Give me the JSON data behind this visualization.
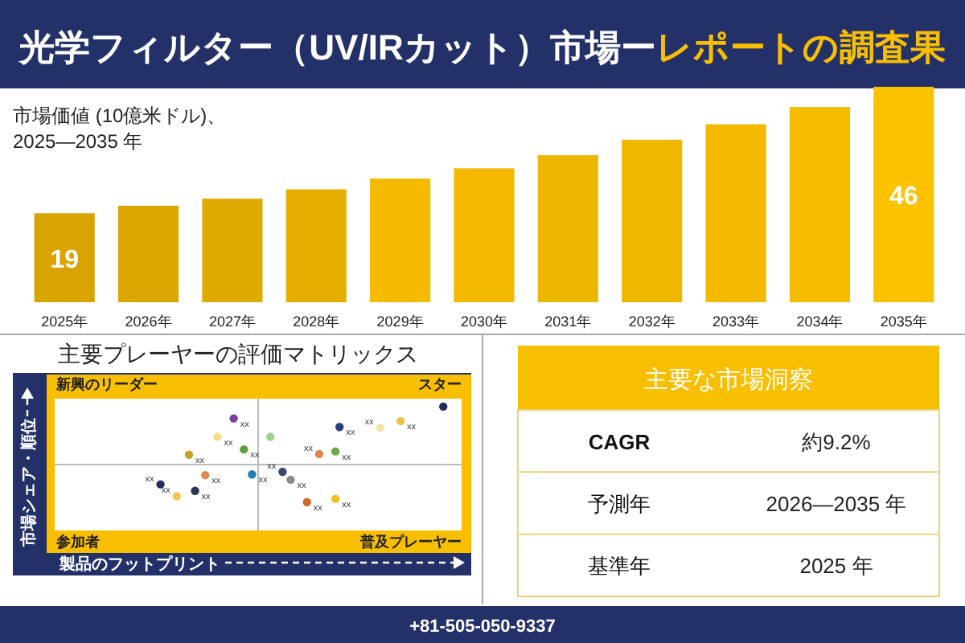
{
  "chart_data": [
    {
      "type": "bar",
      "title": "光学フィルター（UV/IRカット）市場ー",
      "subtitle": "レポートの調査果",
      "ylabel": "市場価値 (10億米ドル)、\n2025—2035 年",
      "categories": [
        "2025年",
        "2026年",
        "2027年",
        "2028年",
        "2029年",
        "2030年",
        "2031年",
        "2032年",
        "2033年",
        "2034年",
        "2035年"
      ],
      "values": [
        19,
        20.6,
        22.1,
        24.1,
        26.4,
        28.6,
        31.4,
        34.7,
        38.0,
        41.7,
        46
      ],
      "value_labels": [
        "19",
        null,
        null,
        null,
        null,
        null,
        null,
        null,
        null,
        null,
        "46"
      ],
      "colors": [
        "#d9a300",
        "#dca600",
        "#dfa900",
        "#e6ae00",
        "#f5bb00",
        "#f2b900",
        "#efb600",
        "#f0b700",
        "#f3ba00",
        "#f6bc00",
        "#fcc200"
      ],
      "tick_labels": "x",
      "annotations": [
        "+81-505-050-9337"
      ]
    },
    {
      "type": "other",
      "title": "主要プレーヤーの評価マトリックス",
      "xlabel": "製品のフットプリント",
      "ylabel": "市場シェア・順位",
      "annotations": [
        "新興のリーダー",
        "スター",
        "参加者",
        "普及プレーヤー",
        "xx",
        "xx",
        "xx",
        "xx",
        "xx",
        "xx",
        "xx",
        "xx",
        "xx",
        "xx",
        "xx",
        "xx",
        "xx",
        "xx",
        "xx",
        "xx",
        "xx",
        "xx"
      ]
    },
    {
      "type": "other",
      "title": "主要な市場洞察",
      "annotations": [
        "CAGR",
        "約9.2%",
        "予測年",
        "2026—2035 年",
        "基準年",
        "2025 年"
      ]
    }
  ]
}
